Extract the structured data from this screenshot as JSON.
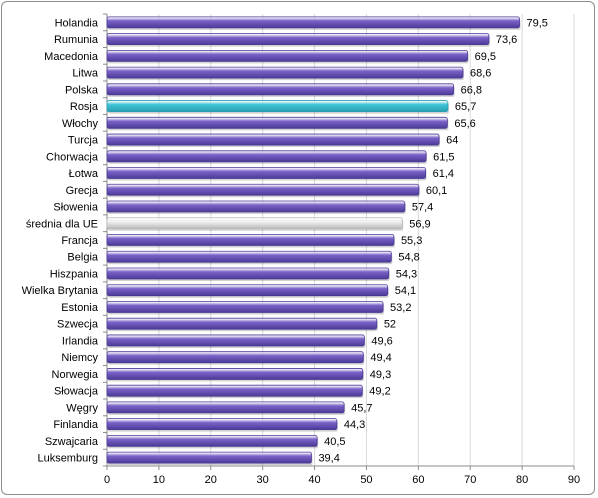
{
  "chart_data": {
    "type": "bar",
    "orientation": "horizontal",
    "categories": [
      "Holandia",
      "Rumunia",
      "Macedonia",
      "Litwa",
      "Polska",
      "Rosja",
      "Włochy",
      "Turcja",
      "Chorwacja",
      "Łotwa",
      "Grecja",
      "Słowenia",
      "średnia dla UE",
      "Francja",
      "Belgia",
      "Hiszpania",
      "Wielka Brytania",
      "Estonia",
      "Szwecja",
      "Irlandia",
      "Niemcy",
      "Norwegia",
      "Słowacja",
      "Węgry",
      "Finlandia",
      "Szwajcaria",
      "Luksemburg"
    ],
    "values": [
      79.5,
      73.6,
      69.5,
      68.6,
      66.8,
      65.7,
      65.6,
      64,
      61.5,
      61.4,
      60.1,
      57.4,
      56.9,
      55.3,
      54.8,
      54.3,
      54.1,
      53.2,
      52,
      49.6,
      49.4,
      49.3,
      49.2,
      45.7,
      44.3,
      40.5,
      39.4
    ],
    "value_labels": [
      "79,5",
      "73,6",
      "69,5",
      "68,6",
      "66,8",
      "65,7",
      "65,6",
      "64",
      "61,5",
      "61,4",
      "60,1",
      "57,4",
      "56,9",
      "55,3",
      "54,8",
      "54,3",
      "54,1",
      "53,2",
      "52",
      "49,6",
      "49,4",
      "49,3",
      "49,2",
      "45,7",
      "44,3",
      "40,5",
      "39,4"
    ],
    "title": "",
    "xlabel": "",
    "ylabel": "",
    "xlim": [
      0,
      90
    ],
    "xticks": [
      0,
      10,
      20,
      30,
      40,
      50,
      60,
      70,
      80,
      90
    ],
    "grid": "vertical",
    "legend": "none",
    "colors": {
      "default": "#7b63c9",
      "default_dark": "#4b3a96",
      "highlight": "#3fc6d8",
      "highlight_dark": "#2a9fb2",
      "average": "#f2f2f2",
      "average_dark": "#b8b8b8",
      "grid": "#d9d9d9",
      "axis": "#8c8c8c"
    },
    "highlight_categories": [
      "Rosja"
    ],
    "average_categories": [
      "średnia dla UE"
    ]
  }
}
